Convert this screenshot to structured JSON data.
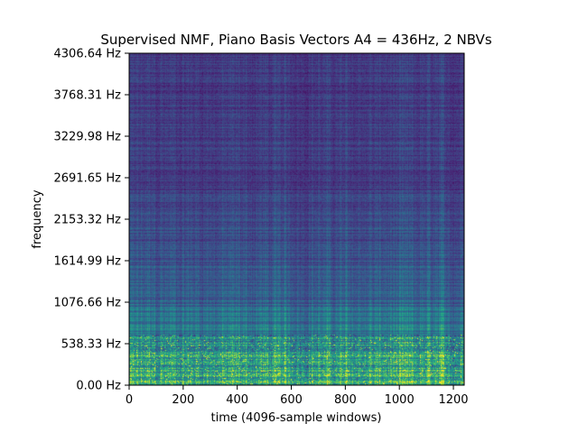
{
  "chart_data": {
    "type": "heatmap",
    "title": "Supervised NMF, Piano Basis Vectors A4 = 436Hz, 2 NBVs",
    "xlabel": "time (4096-sample windows)",
    "ylabel": "frequency",
    "xlim": [
      0,
      1240
    ],
    "ylim": [
      0,
      4306.64
    ],
    "x_ticks": [
      0,
      200,
      400,
      600,
      800,
      1000,
      1200
    ],
    "x_tick_labels": [
      "0",
      "200",
      "400",
      "600",
      "800",
      "1000",
      "1200"
    ],
    "y_ticks": [
      0,
      538.33,
      1076.66,
      1614.99,
      2153.32,
      2691.65,
      3229.98,
      3768.31,
      4306.64
    ],
    "y_tick_labels": [
      "0.00 Hz",
      "538.33 Hz",
      "1076.66 Hz",
      "1614.99 Hz",
      "2153.32 Hz",
      "2691.65 Hz",
      "3229.98 Hz",
      "3768.31 Hz",
      "4306.64 Hz"
    ],
    "colormap": "viridis",
    "value_range": [
      0,
      1
    ],
    "grid": false,
    "description_of_values": "Magnitude concentrated below ~600 Hz (bright green/yellow), with moderate teal striations up to ~1100 Hz and dark purple/blue background at higher frequencies; vertical streaks across time"
  }
}
